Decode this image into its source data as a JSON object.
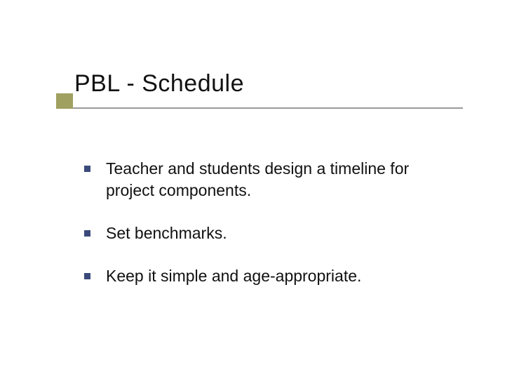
{
  "slide": {
    "title": "PBL - Schedule",
    "title_color": "#111111",
    "title_fontsize": 34,
    "underline_color": "#9a9a9a",
    "accent_color": "#a0a060",
    "background_color": "#ffffff",
    "bullet_marker_color": "#3a4a7a",
    "bullet_fontsize": 23,
    "bullet_text_color": "#111111",
    "bullets": [
      "Teacher and students design a timeline for project components.",
      "Set benchmarks.",
      "Keep it simple and age-appropriate."
    ]
  }
}
